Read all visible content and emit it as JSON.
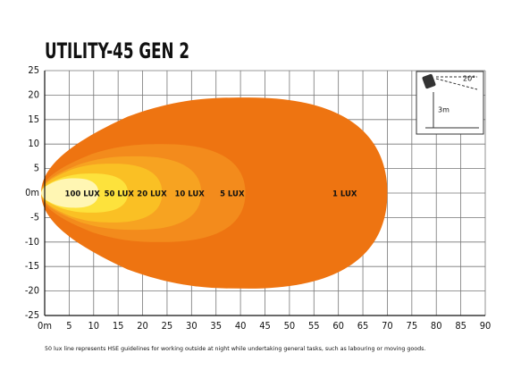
{
  "chart_data": {
    "type": "beam",
    "title": "UTILITY-45 GEN 2",
    "footnote": "50 lux line represents HSE guidelines for working outside at night while undertaking general tasks, such as labouring or moving goods.",
    "xlim": [
      0,
      90
    ],
    "xticks": [
      {
        "value": 0,
        "label": "0m"
      },
      5,
      10,
      15,
      20,
      25,
      30,
      35,
      40,
      45,
      50,
      55,
      60,
      65,
      70,
      75,
      80,
      85,
      90
    ],
    "ylim": [
      -25,
      25
    ],
    "yticks": [
      25,
      20,
      15,
      10,
      5,
      {
        "value": 0,
        "label": "0m"
      },
      -5,
      -10,
      -15,
      -20,
      -25
    ],
    "grid": true,
    "series": [
      {
        "name": "1 LUX",
        "color": "#ee7411",
        "reach": 70,
        "half_width": 19.5
      },
      {
        "name": "5 LUX",
        "color": "#f38b1c",
        "reach": 41,
        "half_width": 10
      },
      {
        "name": "10 LUX",
        "color": "#f7a321",
        "reach": 32,
        "half_width": 7.5
      },
      {
        "name": "20 LUX",
        "color": "#fac024",
        "reach": 24,
        "half_width": 6
      },
      {
        "name": "50 LUX",
        "color": "#fde23c",
        "reach": 17,
        "half_width": 4
      },
      {
        "name": "100 LUX",
        "color": "#fff6b3",
        "reach": 11,
        "half_width": 3
      }
    ],
    "inset": {
      "angle": "20°",
      "height": "3m"
    }
  }
}
